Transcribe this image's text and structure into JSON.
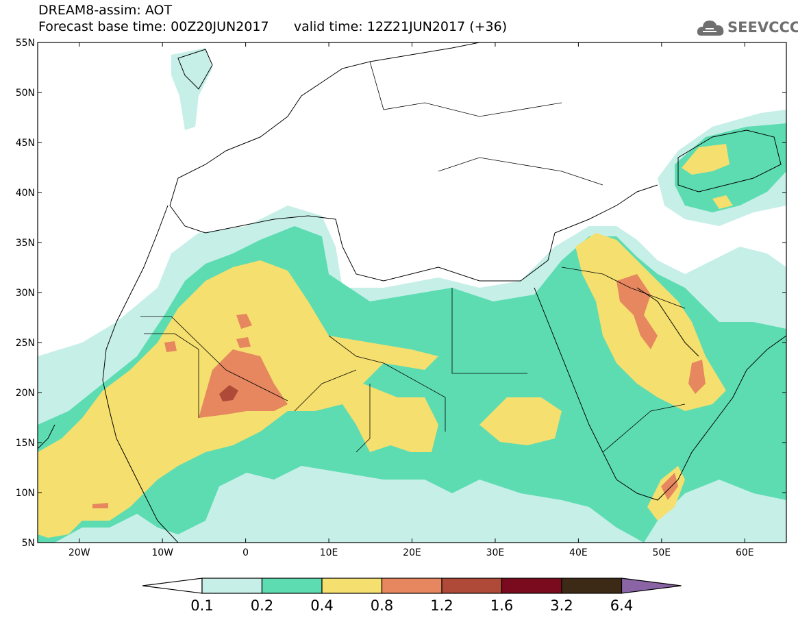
{
  "header": {
    "title_line1": "DREAM8-assim: AOT",
    "title_line2": "Forecast base time: 00Z20JUN2017      valid time: 12Z21JUN2017 (+36)",
    "logo_text": "SEEVCCC",
    "logo_icon": "cloud-icon"
  },
  "map": {
    "lon_range": [
      -25,
      65
    ],
    "lat_range": [
      5,
      55
    ],
    "lat_labels": [
      "55N",
      "50N",
      "45N",
      "40N",
      "35N",
      "30N",
      "25N",
      "20N",
      "15N",
      "10N",
      "5N"
    ],
    "lon_labels": [
      "20W",
      "10W",
      "0",
      "10E",
      "20E",
      "30E",
      "40E",
      "50E",
      "60E"
    ]
  },
  "colorbar": {
    "levels": [
      "0.1",
      "0.2",
      "0.4",
      "0.8",
      "1.2",
      "1.6",
      "3.2",
      "6.4"
    ],
    "colors": [
      "#ffffff",
      "#c6efe8",
      "#5ddcb2",
      "#f5df6e",
      "#e6875f",
      "#b04a38",
      "#7a0a1e",
      "#3d2a16",
      "#8a64a4"
    ]
  }
}
